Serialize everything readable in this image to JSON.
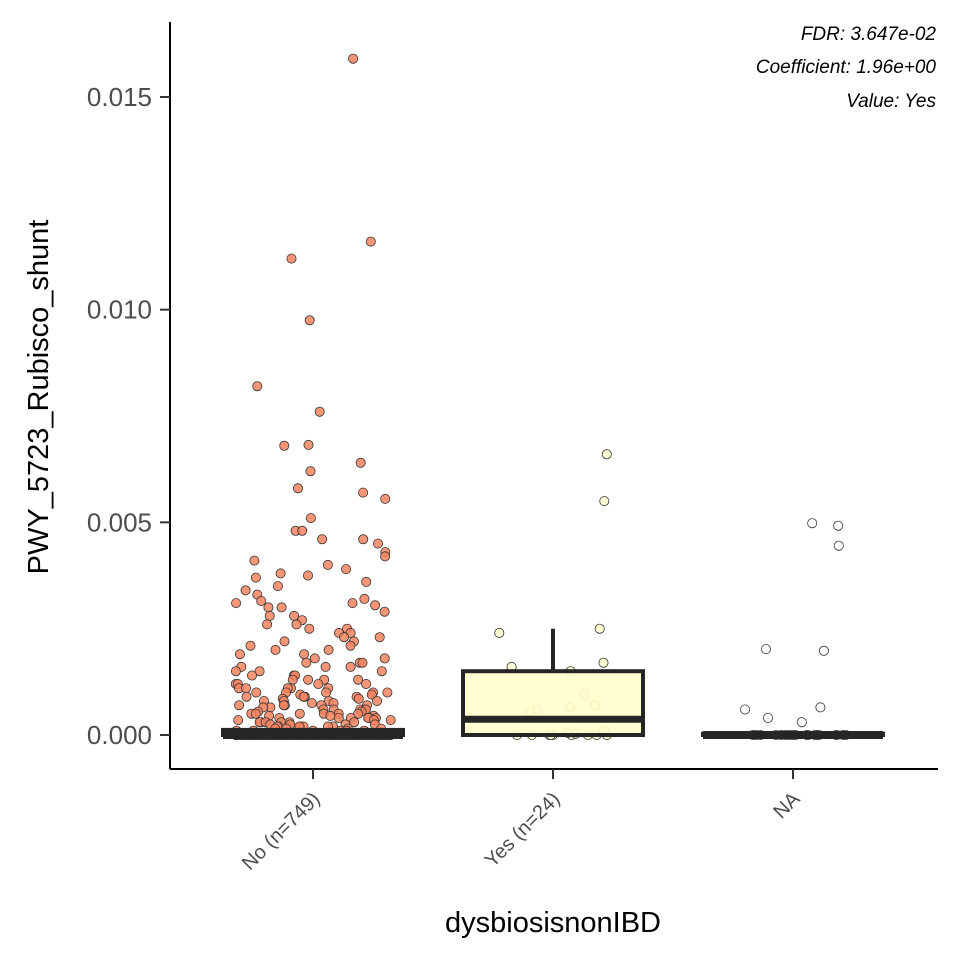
{
  "chart_data": {
    "type": "box",
    "title": "",
    "xlabel": "dysbiosisnonIBD",
    "ylabel": "PWY_5723_Rubisco_shunt",
    "ylim": [
      -0.0008,
      0.0167
    ],
    "yticks": [
      0.0,
      0.005,
      0.01,
      0.015
    ],
    "ytick_labels": [
      "0.000",
      "0.005",
      "0.010",
      "0.015"
    ],
    "grid": false,
    "legend": "none",
    "annotations": [
      "FDR: 3.647e-02",
      "Coefficient: 1.96e+00",
      "Value: Yes"
    ],
    "categories": [
      "No (n=749)",
      "Yes (n=24)",
      "NA"
    ],
    "colors": {
      "No (n=749)": "#f4845f",
      "Yes (n=24)": "#ffffcc",
      "NA": "#ffffff"
    },
    "boxes": [
      {
        "category": "No (n=749)",
        "q1": 0.0,
        "median": 0.0,
        "q3": 0.00012,
        "whisker_low": 0.0,
        "whisker_high": 0.00012
      },
      {
        "category": "Yes (n=24)",
        "q1": 0.0,
        "median": 0.00037,
        "q3": 0.0015,
        "whisker_low": 0.0,
        "whisker_high": 0.0025
      },
      {
        "category": "NA",
        "q1": 0.0,
        "median": 0.0,
        "q3": 3e-05,
        "whisker_low": 0.0,
        "whisker_high": 3e-05
      }
    ],
    "points": {
      "No (n=749)": {
        "zero_count": 420,
        "values": [
          0.0159,
          0.0116,
          0.0112,
          0.00975,
          0.0082,
          0.0076,
          0.0068,
          0.00682,
          0.0064,
          0.0062,
          0.0058,
          0.0057,
          0.00555,
          0.0051,
          0.0048,
          0.0048,
          0.0046,
          0.0046,
          0.0045,
          0.0043,
          0.0042,
          0.0041,
          0.004,
          0.0039,
          0.0038,
          0.00375,
          0.0037,
          0.0036,
          0.0035,
          0.0034,
          0.0033,
          0.0032,
          0.00315,
          0.0031,
          0.0031,
          0.003,
          0.00305,
          0.003,
          0.0029,
          0.0028,
          0.0028,
          0.0027,
          0.0026,
          0.0026,
          0.0025,
          0.0025,
          0.0024,
          0.0024,
          0.0023,
          0.0023,
          0.0022,
          0.0022,
          0.0021,
          0.0021,
          0.002,
          0.002,
          0.0019,
          0.0019,
          0.0018,
          0.0018,
          0.0017,
          0.0017,
          0.0017,
          0.0016,
          0.0016,
          0.0016,
          0.0015,
          0.0015,
          0.0015,
          0.0014,
          0.0014,
          0.0014,
          0.0013,
          0.0013,
          0.0013,
          0.0013,
          0.0012,
          0.0012,
          0.0012,
          0.0012,
          0.0011,
          0.0011,
          0.0011,
          0.0011,
          0.0011,
          0.001,
          0.001,
          0.001,
          0.001,
          0.001,
          0.00095,
          0.00095,
          0.0009,
          0.0009,
          0.0009,
          0.0009,
          0.00085,
          0.00085,
          0.0008,
          0.0008,
          0.0008,
          0.0008,
          0.00075,
          0.00075,
          0.0007,
          0.0007,
          0.0007,
          0.0007,
          0.0007,
          0.00065,
          0.00065,
          0.0006,
          0.0006,
          0.0006,
          0.0006,
          0.0006,
          0.00055,
          0.00055,
          0.0005,
          0.0005,
          0.0005,
          0.0005,
          0.0005,
          0.0005,
          0.00045,
          0.00045,
          0.00045,
          0.0004,
          0.0004,
          0.0004,
          0.0004,
          0.0004,
          0.0004,
          0.00035,
          0.00035,
          0.00035,
          0.0003,
          0.0003,
          0.0003,
          0.0003,
          0.0003,
          0.0003,
          0.00025,
          0.00025,
          0.00025,
          0.00025,
          0.0002,
          0.0002,
          0.0002,
          0.0002,
          0.0002,
          0.0002,
          0.0002,
          0.00015,
          0.00015,
          0.00015,
          0.00015,
          0.0001,
          0.0001,
          0.0001,
          0.0001,
          0.0001,
          0.0001
        ]
      },
      "Yes (n=24)": {
        "zero_count": 9,
        "values": [
          0.0066,
          0.0055,
          0.0025,
          0.0024,
          0.0017,
          0.0016,
          0.0015,
          0.00095,
          0.0007,
          0.00065,
          0.0006,
          0.00055,
          0.0001,
          5e-05,
          3e-05
        ]
      },
      "NA": {
        "zero_count": 18,
        "values": [
          0.00498,
          0.00492,
          0.00445,
          0.00202,
          0.00198,
          0.00065,
          0.0006,
          0.0004,
          0.0003
        ]
      }
    }
  }
}
